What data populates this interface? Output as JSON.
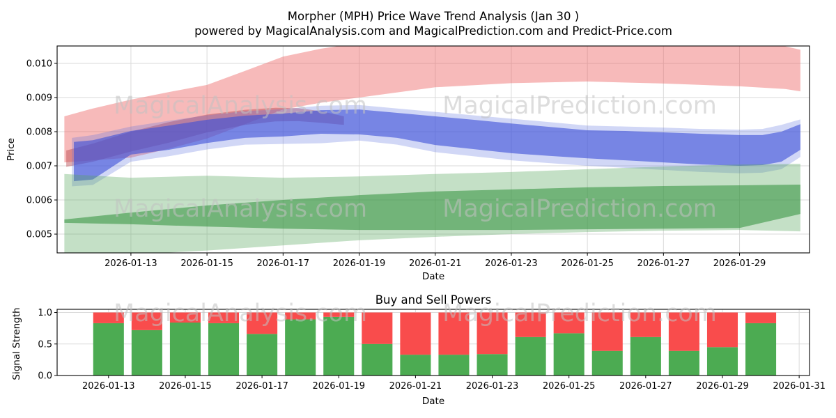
{
  "watermarks": {
    "analysis": "MagicalAnalysis.com",
    "prediction": "MagicalPrediction.com",
    "color": "#c2c2c2"
  },
  "chart_data": [
    {
      "type": "area",
      "title": "Morpher (MPH) Price Wave Trend Analysis (Jan 30 )",
      "subtitle": "powered by MagicalAnalysis.com and MagicalPrediction.com and Predict-Price.com",
      "xlabel": "Date",
      "ylabel": "Price",
      "xlim": [
        11.06,
        30.84
      ],
      "ylim": [
        0.00445,
        0.01051
      ],
      "grid": true,
      "gridline_color": "#dadada",
      "frame_color": "#000000",
      "x_ticks": {
        "days": [
          13,
          15,
          17,
          19,
          21,
          23,
          25,
          27,
          29
        ],
        "labels": [
          "2026-01-13",
          "2026-01-15",
          "2026-01-17",
          "2026-01-19",
          "2026-01-21",
          "2026-01-23",
          "2026-01-25",
          "2026-01-27",
          "2026-01-29"
        ]
      },
      "y_ticks": {
        "values": [
          0.005,
          0.006,
          0.007,
          0.008,
          0.009,
          0.01
        ],
        "labels": [
          "0.005",
          "0.006",
          "0.007",
          "0.008",
          "0.009",
          "0.010"
        ]
      },
      "bands": [
        {
          "name": "resistance-fan-outer",
          "color": "#ed5a5a",
          "opacity": 0.42,
          "x": [
            11.25,
            12,
            13,
            14,
            15,
            16,
            17,
            18,
            19,
            21,
            23,
            25,
            27,
            29,
            30.2,
            30.6
          ],
          "upper": [
            0.00845,
            0.00868,
            0.00894,
            0.00916,
            0.00937,
            0.00978,
            0.0102,
            0.01043,
            0.0106,
            0.0106,
            0.0106,
            0.0106,
            0.0106,
            0.0106,
            0.0105,
            0.0104
          ],
          "lower": [
            0.0071,
            0.00716,
            0.00724,
            0.0075,
            0.0078,
            0.00822,
            0.00865,
            0.00885,
            0.009,
            0.0093,
            0.00942,
            0.00947,
            0.00941,
            0.00933,
            0.00925,
            0.00918
          ]
        },
        {
          "name": "resistance-fan-inner",
          "color": "#b8464e",
          "opacity": 0.45,
          "x": [
            11.3,
            12,
            13,
            14,
            15,
            16,
            16.8,
            17.4,
            18,
            18.6
          ],
          "upper": [
            0.00745,
            0.00765,
            0.008,
            0.00828,
            0.0085,
            0.00864,
            0.0087,
            0.00869,
            0.0086,
            0.00845
          ],
          "lower": [
            0.00697,
            0.00712,
            0.00742,
            0.00768,
            0.00798,
            0.0082,
            0.0083,
            0.00831,
            0.00826,
            0.0082
          ]
        },
        {
          "name": "price-fan-outer",
          "color": "#5a6fe0",
          "opacity": 0.28,
          "x": [
            11.45,
            12,
            13,
            14,
            15,
            16,
            17,
            18,
            19,
            20,
            21,
            22,
            23,
            24,
            25,
            26,
            27,
            28,
            29,
            29.6,
            30.1,
            30.6
          ],
          "upper": [
            0.00782,
            0.0079,
            0.00815,
            0.00832,
            0.00848,
            0.0086,
            0.00866,
            0.00876,
            0.00878,
            0.00868,
            0.00858,
            0.00848,
            0.00838,
            0.00828,
            0.00818,
            0.00815,
            0.00812,
            0.00808,
            0.00806,
            0.00808,
            0.0082,
            0.00836
          ],
          "lower": [
            0.0064,
            0.00644,
            0.00712,
            0.00728,
            0.00748,
            0.00762,
            0.00764,
            0.00766,
            0.00774,
            0.00762,
            0.0074,
            0.00728,
            0.00716,
            0.00708,
            0.007,
            0.00694,
            0.00688,
            0.00682,
            0.00678,
            0.0068,
            0.0069,
            0.00726
          ]
        },
        {
          "name": "price-fan-core",
          "color": "#3a4fd8",
          "opacity": 0.6,
          "x": [
            11.5,
            12,
            13,
            14,
            15,
            16,
            17,
            18,
            19,
            20,
            21,
            22,
            23,
            24,
            25,
            26,
            27,
            28,
            29,
            29.6,
            30.1,
            30.6
          ],
          "upper": [
            0.0077,
            0.00775,
            0.00802,
            0.00818,
            0.00835,
            0.00847,
            0.00853,
            0.00863,
            0.00865,
            0.00855,
            0.00845,
            0.00835,
            0.00824,
            0.00814,
            0.00804,
            0.00802,
            0.00798,
            0.00794,
            0.0079,
            0.0079,
            0.008,
            0.00822
          ],
          "lower": [
            0.00655,
            0.0066,
            0.00733,
            0.00747,
            0.00767,
            0.00782,
            0.00786,
            0.00794,
            0.00792,
            0.00782,
            0.00761,
            0.00749,
            0.00737,
            0.00729,
            0.00722,
            0.00716,
            0.0071,
            0.00704,
            0.007,
            0.00702,
            0.00712,
            0.00747
          ]
        },
        {
          "name": "support-fan-outer",
          "color": "#55a55c",
          "opacity": 0.35,
          "x": [
            11.25,
            13,
            15,
            17,
            19,
            21,
            23,
            25,
            27,
            29,
            30.6
          ],
          "upper": [
            0.00676,
            0.00665,
            0.00671,
            0.00665,
            0.00669,
            0.00676,
            0.00682,
            0.0069,
            0.00698,
            0.00704,
            0.00706
          ],
          "lower": [
            0.0044,
            0.0044,
            0.00452,
            0.00467,
            0.00482,
            0.00492,
            0.005,
            0.00506,
            0.0051,
            0.00512,
            0.00508
          ]
        },
        {
          "name": "support-fan-core",
          "color": "#2f8f3b",
          "opacity": 0.55,
          "x": [
            11.25,
            13,
            15,
            17,
            19,
            21,
            23,
            25,
            27,
            29,
            30.6
          ],
          "upper": [
            0.00543,
            0.00563,
            0.00584,
            0.006,
            0.00614,
            0.00625,
            0.00631,
            0.00637,
            0.00641,
            0.00643,
            0.00645
          ],
          "lower": [
            0.00533,
            0.00529,
            0.00522,
            0.00516,
            0.00512,
            0.00512,
            0.00512,
            0.00514,
            0.00516,
            0.00518,
            0.00559
          ]
        }
      ]
    },
    {
      "type": "bar",
      "title": "Buy and Sell Powers",
      "xlabel": "Date",
      "ylabel": "Signal Strength",
      "xlim": [
        11.66,
        31.27
      ],
      "ylim": [
        0,
        1.05
      ],
      "grid": true,
      "gridline_color": "#dadada",
      "frame_color": "#000000",
      "bar_width_days": 0.8,
      "categories": [
        "2026-01-13",
        "2026-01-14",
        "2026-01-15",
        "2026-01-16",
        "2026-01-17",
        "2026-01-18",
        "2026-01-19",
        "2026-01-20",
        "2026-01-21",
        "2026-01-22",
        "2026-01-23",
        "2026-01-24",
        "2026-01-25",
        "2026-01-26",
        "2026-01-27",
        "2026-01-28",
        "2026-01-29",
        "2026-01-30"
      ],
      "category_days": [
        13,
        14,
        15,
        16,
        17,
        18,
        19,
        20,
        21,
        22,
        23,
        24,
        25,
        26,
        27,
        28,
        29,
        30
      ],
      "series": [
        {
          "name": "Buy",
          "color": "#4cab52",
          "values": [
            0.83,
            0.72,
            0.84,
            0.83,
            0.66,
            0.89,
            0.93,
            0.5,
            0.33,
            0.33,
            0.34,
            0.61,
            0.67,
            0.39,
            0.61,
            0.39,
            0.45,
            0.83
          ]
        },
        {
          "name": "Sell",
          "color": "#f94c4c",
          "values": [
            0.17,
            0.28,
            0.16,
            0.17,
            0.34,
            0.11,
            0.07,
            0.5,
            0.67,
            0.67,
            0.66,
            0.39,
            0.33,
            0.61,
            0.39,
            0.61,
            0.55,
            0.17
          ]
        }
      ],
      "x_ticks": {
        "days": [
          13,
          15,
          17,
          19,
          21,
          23,
          25,
          27,
          29,
          31
        ],
        "labels": [
          "2026-01-13",
          "2026-01-15",
          "2026-01-17",
          "2026-01-19",
          "2026-01-21",
          "2026-01-23",
          "2026-01-25",
          "2026-01-27",
          "2026-01-29",
          "2026-01-31"
        ]
      },
      "y_ticks": {
        "values": [
          0.0,
          0.5,
          1.0
        ],
        "labels": [
          "0.0",
          "0.5",
          "1.0"
        ]
      }
    }
  ]
}
